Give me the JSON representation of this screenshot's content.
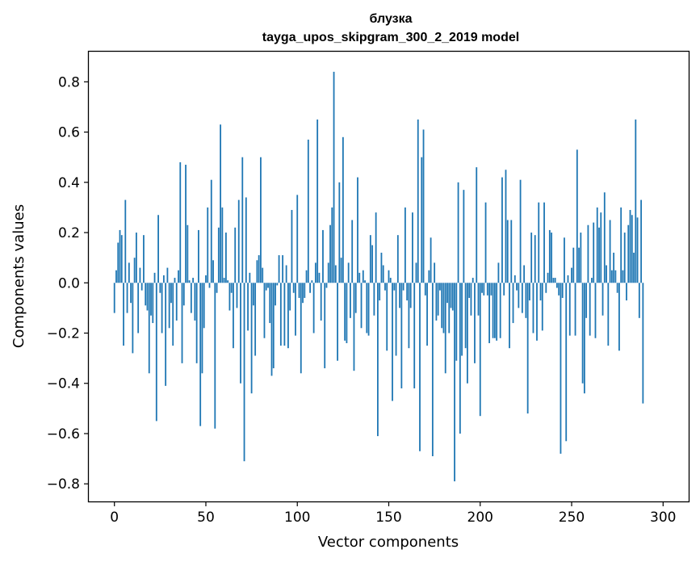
{
  "chart_data": {
    "type": "bar",
    "title_line1": "блузка",
    "title_line2": "tayga_upos_skipgram_300_2_2019 model",
    "xlabel": "Vector components",
    "ylabel": "Components values",
    "xlim": [
      -14,
      314
    ],
    "ylim": [
      -0.87,
      0.92
    ],
    "xticks": [
      0,
      50,
      100,
      150,
      200,
      250,
      300
    ],
    "xtick_labels": [
      "0",
      "50",
      "100",
      "150",
      "200",
      "250",
      "300"
    ],
    "yticks": [
      -0.8,
      -0.6,
      -0.4,
      -0.2,
      0.0,
      0.2,
      0.4,
      0.6,
      0.8
    ],
    "ytick_labels": [
      "−0.8",
      "−0.6",
      "−0.4",
      "−0.2",
      "0.0",
      "0.2",
      "0.4",
      "0.6",
      "0.8"
    ],
    "bar_color": "#1f77b4",
    "values": [
      -0.12,
      0.05,
      0.16,
      0.21,
      0.19,
      -0.25,
      0.33,
      -0.12,
      0.08,
      -0.08,
      -0.28,
      0.1,
      0.2,
      -0.2,
      0.06,
      -0.03,
      0.19,
      -0.09,
      -0.11,
      -0.36,
      -0.13,
      -0.16,
      0.04,
      -0.55,
      0.27,
      -0.04,
      -0.2,
      0.03,
      -0.41,
      0.06,
      -0.18,
      -0.08,
      -0.25,
      0.02,
      -0.15,
      0.05,
      0.48,
      -0.32,
      -0.09,
      0.47,
      0.23,
      0.01,
      -0.12,
      0.02,
      -0.15,
      -0.32,
      0.21,
      -0.57,
      -0.36,
      -0.18,
      0.03,
      0.3,
      -0.02,
      0.41,
      0.09,
      -0.58,
      -0.04,
      0.22,
      0.63,
      0.3,
      0.02,
      0.2,
      0.01,
      -0.11,
      -0.04,
      -0.26,
      0.22,
      -0.1,
      0.33,
      -0.4,
      0.5,
      -0.71,
      0.34,
      -0.19,
      0.04,
      -0.44,
      -0.09,
      -0.29,
      0.09,
      0.11,
      0.5,
      0.06,
      -0.22,
      -0.03,
      -0.02,
      -0.16,
      -0.37,
      -0.34,
      -0.09,
      -0.01,
      0.11,
      -0.25,
      0.11,
      -0.25,
      0.07,
      -0.26,
      -0.11,
      0.29,
      -0.04,
      -0.21,
      0.35,
      -0.06,
      -0.36,
      -0.08,
      -0.06,
      0.05,
      0.57,
      -0.04,
      0.01,
      -0.2,
      0.08,
      0.65,
      0.04,
      -0.15,
      0.21,
      -0.34,
      -0.02,
      0.08,
      0.23,
      0.3,
      0.84,
      0.07,
      -0.31,
      0.4,
      0.1,
      0.58,
      -0.23,
      -0.24,
      0.08,
      -0.14,
      0.25,
      -0.35,
      -0.12,
      0.42,
      0.04,
      -0.18,
      0.05,
      0.01,
      -0.2,
      -0.21,
      0.19,
      0.15,
      -0.13,
      0.28,
      -0.61,
      -0.07,
      0.12,
      0.07,
      -0.03,
      -0.27,
      0.05,
      0.02,
      -0.47,
      -0.03,
      -0.29,
      0.19,
      -0.1,
      -0.42,
      -0.03,
      0.3,
      -0.07,
      -0.26,
      -0.1,
      0.28,
      -0.42,
      0.08,
      0.65,
      -0.67,
      0.5,
      0.61,
      -0.05,
      -0.25,
      0.05,
      0.18,
      -0.69,
      0.08,
      -0.15,
      -0.13,
      -0.03,
      -0.18,
      -0.2,
      -0.36,
      -0.08,
      -0.2,
      -0.1,
      -0.11,
      -0.79,
      -0.31,
      0.4,
      -0.6,
      -0.29,
      0.37,
      -0.26,
      -0.4,
      -0.06,
      -0.13,
      0.02,
      -0.32,
      0.46,
      -0.13,
      -0.53,
      -0.04,
      -0.05,
      0.32,
      -0.05,
      -0.24,
      -0.05,
      -0.22,
      -0.22,
      -0.23,
      0.08,
      -0.22,
      0.42,
      -0.05,
      0.45,
      0.25,
      -0.26,
      0.25,
      -0.16,
      0.03,
      -0.03,
      -0.1,
      0.41,
      -0.12,
      0.07,
      -0.14,
      -0.52,
      -0.07,
      0.2,
      -0.2,
      0.19,
      -0.23,
      0.32,
      -0.07,
      -0.19,
      0.32,
      -0.04,
      0.04,
      0.21,
      0.2,
      0.02,
      0.02,
      -0.02,
      -0.05,
      -0.68,
      -0.06,
      0.18,
      -0.63,
      0.03,
      -0.21,
      0.06,
      0.14,
      -0.21,
      0.53,
      0.14,
      0.2,
      -0.4,
      -0.44,
      -0.14,
      0.23,
      -0.21,
      0.02,
      0.24,
      -0.22,
      0.3,
      0.22,
      0.28,
      -0.13,
      0.36,
      0.07,
      -0.25,
      0.25,
      0.05,
      0.12,
      0.05,
      -0.04,
      -0.27,
      0.3,
      0.05,
      0.2,
      -0.07,
      0.23,
      0.29,
      0.27,
      0.12,
      0.65,
      0.26,
      -0.14,
      0.33,
      -0.48
    ]
  }
}
